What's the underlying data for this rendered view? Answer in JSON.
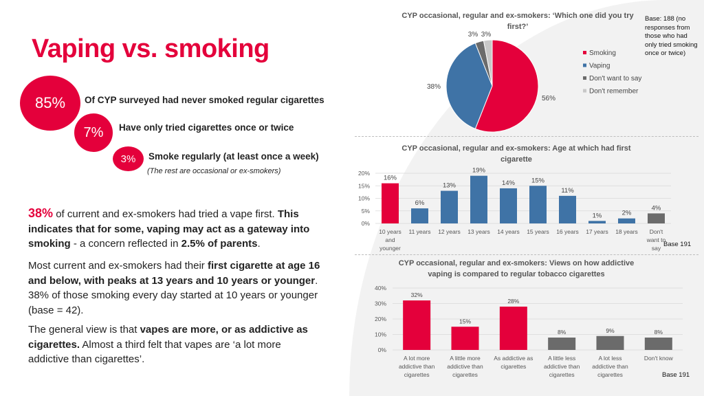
{
  "left": {
    "title": "Vaping vs. smoking",
    "stats": [
      {
        "value": "85%",
        "text": "Of CYP surveyed had never smoked regular cigarettes"
      },
      {
        "value": "7%",
        "text": "Have only tried cigarettes once or twice"
      },
      {
        "value": "3%",
        "text": "Smoke regularly (at least once a week)",
        "note": "(The rest are occasional or ex-smokers)"
      }
    ],
    "para1": {
      "pct": "38%",
      "t1": " of current and ex-smokers had tried a vape first. ",
      "b1": "This indicates that for some, vaping may act as a gateway into smoking",
      "t2": " - a concern reflected in ",
      "b2": "2.5% of parents",
      "t3": "."
    },
    "para2": {
      "t1": "Most current and ex-smokers had their ",
      "b1": "first cigarette at age 16 and below, with peaks at 13 years and 10 years or younger",
      "t2": ". 38% of those smoking every day started at 10 years or younger (base = 42)."
    },
    "para3": {
      "t1": "The general view is that ",
      "b1": "vapes are more, or as addictive as cigarettes.",
      "t2": " Almost a third felt that vapes are ‘a lot more addictive than cigarettes’."
    }
  },
  "chart_data": [
    {
      "type": "pie",
      "title": "CYP occasional, regular and ex-smokers: ‘Which one did you try first?’",
      "base_note": "Base: 188 (no responses from those who had only tried smoking once or twice)",
      "categories": [
        "Smoking",
        "Vaping",
        "Don't want to say",
        "Don't remember"
      ],
      "values": [
        56,
        38,
        3,
        3
      ],
      "labels": [
        "56%",
        "38%",
        "3%",
        "3%"
      ],
      "colors": [
        "#e4003b",
        "#3f73a6",
        "#6b6b6b",
        "#c8c8c8"
      ],
      "legend": "right"
    },
    {
      "type": "bar",
      "title": "CYP occasional, regular and ex-smokers: Age at which had first cigarette",
      "base_note": "Base 191",
      "categories": [
        "10 years and younger",
        "11 years",
        "12 years",
        "13 years",
        "14 years",
        "15 years",
        "16 years",
        "17 years",
        "18 years",
        "Don't want to say"
      ],
      "values": [
        16,
        6,
        13,
        19,
        14,
        15,
        11,
        1,
        2,
        4
      ],
      "labels": [
        "16%",
        "6%",
        "13%",
        "19%",
        "14%",
        "15%",
        "11%",
        "1%",
        "2%",
        "4%"
      ],
      "colors": [
        "#e4003b",
        "#3f73a6",
        "#3f73a6",
        "#3f73a6",
        "#3f73a6",
        "#3f73a6",
        "#3f73a6",
        "#3f73a6",
        "#3f73a6",
        "#6b6b6b"
      ],
      "yticks": [
        "0%",
        "5%",
        "10%",
        "15%",
        "20%"
      ],
      "ylim": [
        0,
        20
      ],
      "grid": true
    },
    {
      "type": "bar",
      "title": "CYP occasional, regular and ex-smokers: Views on how addictive vaping is compared to regular tobacco cigarettes",
      "base_note": "Base 191",
      "categories": [
        "A lot more addictive than cigarettes",
        "A little more addictive than cigarettes",
        "As addictive as cigarettes",
        "A little less addictive than cigarettes",
        "A lot less addictive than cigarettes",
        "Don't know"
      ],
      "values": [
        32,
        15,
        28,
        8,
        9,
        8
      ],
      "labels": [
        "32%",
        "15%",
        "28%",
        "8%",
        "9%",
        "8%"
      ],
      "colors": [
        "#e4003b",
        "#e4003b",
        "#e4003b",
        "#6b6b6b",
        "#6b6b6b",
        "#6b6b6b"
      ],
      "yticks": [
        "0%",
        "10%",
        "20%",
        "30%",
        "40%"
      ],
      "ylim": [
        0,
        40
      ],
      "grid": true
    }
  ]
}
